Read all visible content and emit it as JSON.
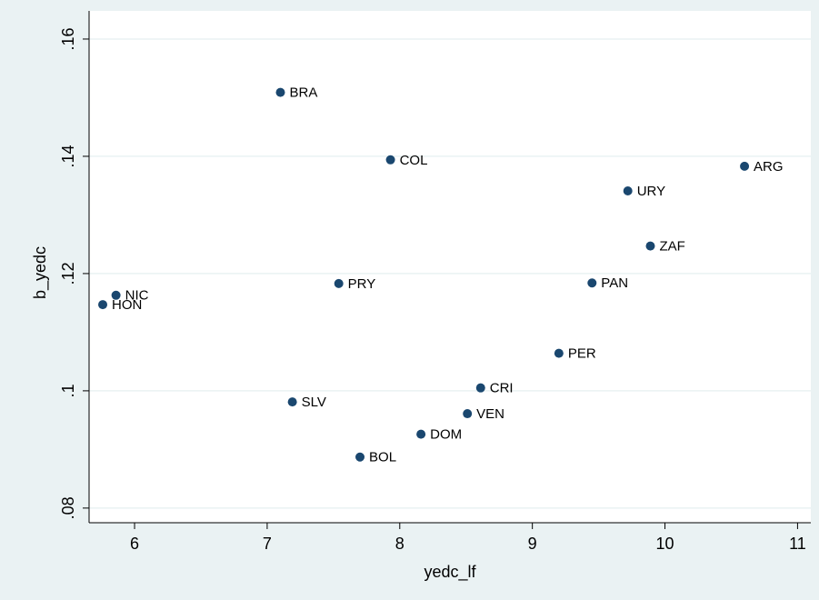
{
  "chart_data": {
    "type": "scatter",
    "x_label": "yedc_lf",
    "y_label": "b_yedc",
    "labels": [
      "BRA",
      "COL",
      "ARG",
      "URY",
      "ZAF",
      "PAN",
      "PRY",
      "NIC",
      "HON",
      "PER",
      "CRI",
      "SLV",
      "VEN",
      "DOM",
      "BOL"
    ],
    "x": [
      7.1,
      7.93,
      10.6,
      9.72,
      9.89,
      9.45,
      7.54,
      5.86,
      5.76,
      9.2,
      8.61,
      7.19,
      8.51,
      8.16,
      7.7
    ],
    "y": [
      0.1509,
      0.1394,
      0.1383,
      0.1341,
      0.1247,
      0.1184,
      0.1183,
      0.1163,
      0.1147,
      0.1064,
      0.1005,
      0.0981,
      0.0961,
      0.0926,
      0.0887
    ],
    "color": "#1a476f",
    "xlim": [
      5.657,
      11.1
    ],
    "ylim": [
      0.0775,
      0.1648
    ],
    "xticks": [
      6,
      7,
      8,
      9,
      10,
      11
    ],
    "yticks": [
      {
        "value": 0.08,
        "label": ".08"
      },
      {
        "value": 0.1,
        "label": ".1"
      },
      {
        "value": 0.12,
        "label": ".12"
      },
      {
        "value": 0.14,
        "label": ".14"
      },
      {
        "value": 0.16,
        "label": ".16"
      }
    ],
    "grid": true
  }
}
